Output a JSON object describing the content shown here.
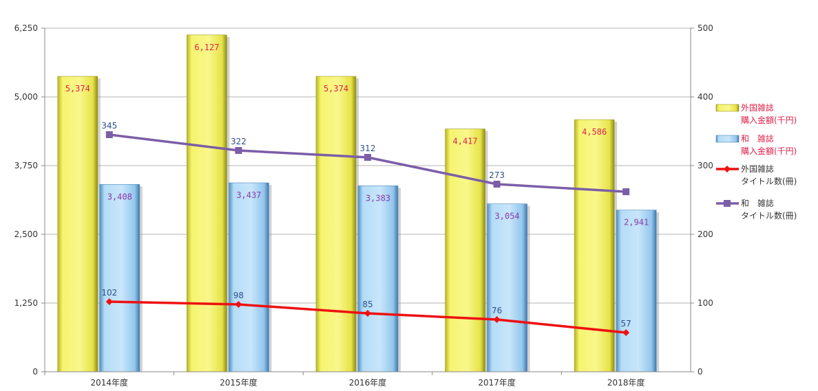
{
  "chart_data": {
    "type": "bar",
    "categories": [
      "2014年度",
      "2015年度",
      "2016年度",
      "2017年度",
      "2018年度"
    ],
    "y_left": {
      "ticks": [
        "0",
        "1,250",
        "2,500",
        "3,750",
        "5,000",
        "6,250"
      ],
      "ylim": [
        0,
        6250
      ]
    },
    "y_right": {
      "ticks": [
        "0",
        "100",
        "200",
        "300",
        "400",
        "500"
      ],
      "ylim": [
        0,
        500
      ]
    },
    "grid": true,
    "legend_position": "right",
    "series": [
      {
        "name": "外国雑誌 購入金額(千円)",
        "name_lines": [
          "外国雑誌",
          "購入金額(千円)"
        ],
        "kind": "bar",
        "axis": "left",
        "color": "#f2f060",
        "label_color": "#e0204a",
        "values": [
          5374,
          6127,
          5374,
          4417,
          4586
        ],
        "labels": [
          "5,374",
          "6,127",
          "5,374",
          "4,417",
          "4,586"
        ]
      },
      {
        "name": "和　雑誌 購入金額(千円)",
        "name_lines": [
          "和　雑誌",
          "購入金額(千円)"
        ],
        "kind": "bar",
        "axis": "left",
        "color": "#a9d7f5",
        "label_color": "#8a3aa8",
        "values": [
          3408,
          3437,
          3383,
          3054,
          2941
        ],
        "labels": [
          "3,408",
          "3,437",
          "3,383",
          "3,054",
          "2,941"
        ]
      },
      {
        "name": "外国雑誌 タイトル数(冊)",
        "name_lines": [
          "外国雑誌",
          "タイトル数(冊)"
        ],
        "kind": "line",
        "axis": "right",
        "color": "#ee1111",
        "marker": "diamond",
        "values": [
          102,
          98,
          85,
          76,
          57
        ],
        "labels": [
          "102",
          "98",
          "85",
          "76",
          "57"
        ]
      },
      {
        "name": "和　雑誌 タイトル数(冊)",
        "name_lines": [
          "和　雑誌",
          "タイトル数(冊)"
        ],
        "kind": "line",
        "axis": "right",
        "color": "#7b5ea7",
        "marker": "square",
        "values": [
          345,
          322,
          312,
          273,
          262
        ],
        "labels": [
          "345",
          "322",
          "312",
          "273",
          ""
        ]
      }
    ]
  }
}
